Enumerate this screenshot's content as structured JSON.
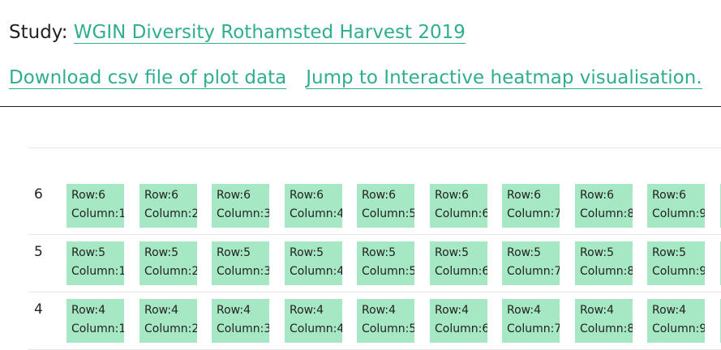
{
  "header": {
    "study_label": "Study:",
    "study_name": "WGIN Diversity Rothamsted Harvest 2019",
    "download_link": "Download csv file of plot data",
    "heatmap_link": "Jump to Interactive heatmap visualisation."
  },
  "grid": {
    "cell_color": "#a6e8c4",
    "link_color": "#2fae8f",
    "rows": [
      {
        "label": "6",
        "cells": [
          {
            "row": "Row:6",
            "col": "Column:1"
          },
          {
            "row": "Row:6",
            "col": "Column:2"
          },
          {
            "row": "Row:6",
            "col": "Column:3"
          },
          {
            "row": "Row:6",
            "col": "Column:4"
          },
          {
            "row": "Row:6",
            "col": "Column:5"
          },
          {
            "row": "Row:6",
            "col": "Column:6"
          },
          {
            "row": "Row:6",
            "col": "Column:7"
          },
          {
            "row": "Row:6",
            "col": "Column:8"
          },
          {
            "row": "Row:6",
            "col": "Column:9"
          }
        ]
      },
      {
        "label": "5",
        "cells": [
          {
            "row": "Row:5",
            "col": "Column:1"
          },
          {
            "row": "Row:5",
            "col": "Column:2"
          },
          {
            "row": "Row:5",
            "col": "Column:3"
          },
          {
            "row": "Row:5",
            "col": "Column:4"
          },
          {
            "row": "Row:5",
            "col": "Column:5"
          },
          {
            "row": "Row:5",
            "col": "Column:6"
          },
          {
            "row": "Row:5",
            "col": "Column:7"
          },
          {
            "row": "Row:5",
            "col": "Column:8"
          },
          {
            "row": "Row:5",
            "col": "Column:9"
          }
        ]
      },
      {
        "label": "4",
        "cells": [
          {
            "row": "Row:4",
            "col": "Column:1"
          },
          {
            "row": "Row:4",
            "col": "Column:2"
          },
          {
            "row": "Row:4",
            "col": "Column:3"
          },
          {
            "row": "Row:4",
            "col": "Column:4"
          },
          {
            "row": "Row:4",
            "col": "Column:5"
          },
          {
            "row": "Row:4",
            "col": "Column:6"
          },
          {
            "row": "Row:4",
            "col": "Column:7"
          },
          {
            "row": "Row:4",
            "col": "Column:8"
          },
          {
            "row": "Row:4",
            "col": "Column:9"
          }
        ]
      }
    ]
  }
}
